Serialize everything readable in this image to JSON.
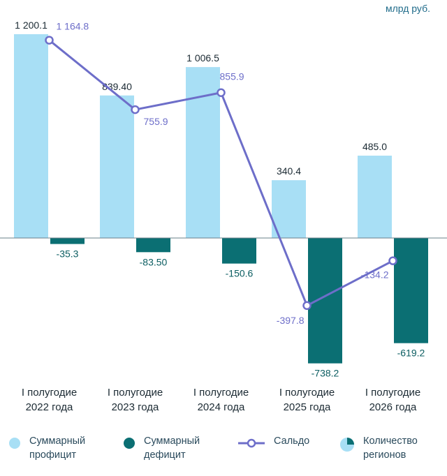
{
  "unit_label": "млрд руб.",
  "chart_data": {
    "type": "bar",
    "categories": [
      "I полугодие\n2022 года",
      "I полугодие\n2023 года",
      "I полугодие\n2024 года",
      "I полугодие\n2025 года",
      "I полугодие\n2026 года"
    ],
    "series": [
      {
        "name": "Суммарный профицит",
        "kind": "bar",
        "color": "#a8dff5",
        "values": [
          1200.1,
          839.4,
          1006.5,
          340.4,
          485.0
        ],
        "labels": [
          "1 200.1",
          "839.40",
          "1 006.5",
          "340.4",
          "485.0"
        ]
      },
      {
        "name": "Суммарный дефицит",
        "kind": "bar",
        "color": "#0b6f73",
        "values": [
          -35.3,
          -83.5,
          -150.6,
          -738.2,
          -619.2
        ],
        "labels": [
          "-35.3",
          "-83.50",
          "-150.6",
          "-738.2",
          "-619.2"
        ]
      },
      {
        "name": "Сальдо",
        "kind": "line",
        "color": "#6d6ec9",
        "values": [
          1164.8,
          755.9,
          855.9,
          -397.8,
          -134.2
        ],
        "labels": [
          "1 164.8",
          "755.9",
          "855.9",
          "-397.8",
          "-134.2"
        ]
      }
    ],
    "ylim": [
      -850,
      1300
    ],
    "grid": false
  },
  "legend": [
    {
      "label_lines": [
        "Суммарный",
        "профицит"
      ],
      "color": "#a8dff5",
      "icon": "circle"
    },
    {
      "label_lines": [
        "Суммарный",
        "дефицит"
      ],
      "color": "#0b6f73",
      "icon": "circle"
    },
    {
      "label_lines": [
        "Сальдо"
      ],
      "color": "#6d6ec9",
      "icon": "line-marker"
    },
    {
      "label_lines": [
        "Количество",
        "регионов"
      ],
      "color": "#0b6f73",
      "icon": "pie"
    }
  ]
}
